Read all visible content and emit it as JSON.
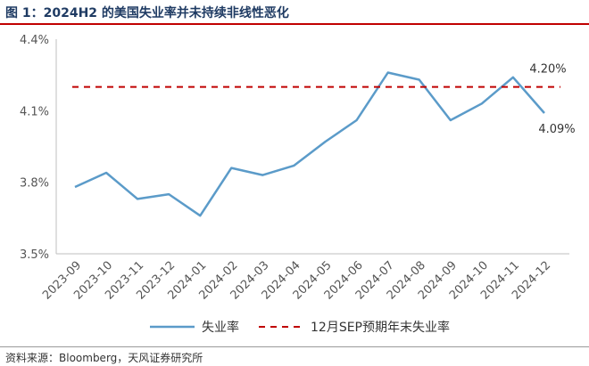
{
  "header": {
    "title": "图 1：2024H2 的美国失业率并未持续非线性恶化"
  },
  "footer": {
    "source": "资料来源：Bloomberg，天风证券研究所"
  },
  "chart_data": {
    "type": "line",
    "x": [
      "2023-09",
      "2023-10",
      "2023-11",
      "2023-12",
      "2024-01",
      "2024-02",
      "2024-03",
      "2024-04",
      "2024-05",
      "2024-06",
      "2024-07",
      "2024-08",
      "2024-09",
      "2024-10",
      "2024-11",
      "2024-12"
    ],
    "series": [
      {
        "name": "失业率",
        "style": "solid",
        "color": "#5b9bc9",
        "values": [
          3.78,
          3.84,
          3.73,
          3.75,
          3.66,
          3.86,
          3.83,
          3.87,
          3.97,
          4.06,
          4.26,
          4.23,
          4.06,
          4.13,
          4.24,
          4.09
        ]
      },
      {
        "name": "12月SEP预期年末失业率",
        "style": "dashed",
        "color": "#c00000",
        "values": [
          4.2,
          4.2,
          4.2,
          4.2,
          4.2,
          4.2,
          4.2,
          4.2,
          4.2,
          4.2,
          4.2,
          4.2,
          4.2,
          4.2,
          4.2,
          4.2
        ]
      }
    ],
    "yticks": [
      "3.5%",
      "3.8%",
      "4.1%",
      "4.4%"
    ],
    "ytick_values": [
      3.5,
      3.8,
      4.1,
      4.4
    ],
    "ylim": [
      3.5,
      4.4
    ],
    "grid": false,
    "legend_position": "bottom",
    "annotations": [
      {
        "text": "4.20%",
        "target": "12月SEP预期年末失业率"
      },
      {
        "text": "4.09%",
        "target": "失业率"
      }
    ]
  }
}
